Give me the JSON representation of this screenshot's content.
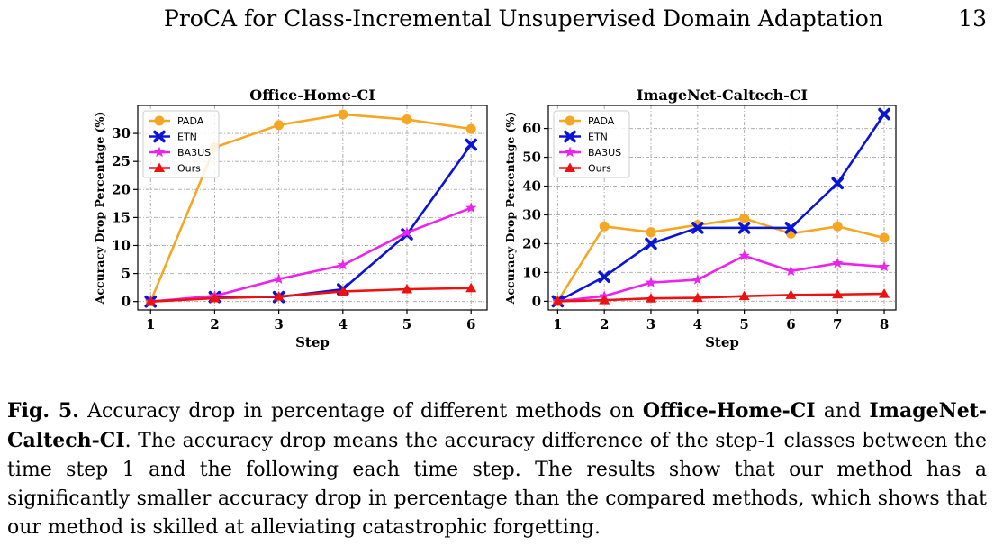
{
  "header": {
    "title": "ProCA for Class-Incremental Unsupervised Domain Adaptation",
    "page_number": "13"
  },
  "caption": {
    "label": "Fig. 5.",
    "t1": " Accuracy drop in percentage of different methods on ",
    "b1": "Office-Home-CI",
    "t2": " and ",
    "b2": "ImageNet-Caltech-CI",
    "t3": ". The accuracy drop means the accuracy difference of the step-1 classes between the time step 1 and the following each time step. The results show that our method has a significantly smaller accuracy drop in percentage than the compared methods, which shows that our method is skilled at alleviating catastrophic forgetting."
  },
  "colors": {
    "PADA": "#f5a623",
    "ETN": "#0a14d6",
    "BA3US": "#ee22ee",
    "Ours": "#ee1111"
  },
  "chart_data": [
    {
      "type": "line",
      "title": "Office-Home-CI",
      "xlabel": "Step",
      "ylabel": "Accuracy Drop Percentage (%)",
      "x": [
        1,
        2,
        3,
        4,
        5,
        6
      ],
      "xlim": [
        0.8,
        6.25
      ],
      "ylim": [
        -1.5,
        35
      ],
      "yticks": [
        0,
        5,
        10,
        15,
        20,
        25,
        30
      ],
      "grid": true,
      "legend": "top-left",
      "series": [
        {
          "name": "PADA",
          "marker": "circle",
          "values": [
            0,
            27.5,
            31.5,
            33.4,
            32.5,
            30.8
          ]
        },
        {
          "name": "ETN",
          "marker": "x",
          "values": [
            0,
            0.8,
            0.8,
            2.2,
            12,
            28
          ]
        },
        {
          "name": "BA3US",
          "marker": "star",
          "values": [
            0,
            1,
            4,
            6.5,
            12.3,
            16.7
          ]
        },
        {
          "name": "Ours",
          "marker": "triangle",
          "values": [
            0,
            0.6,
            0.9,
            1.8,
            2.2,
            2.4
          ]
        }
      ]
    },
    {
      "type": "line",
      "title": "ImageNet-Caltech-CI",
      "xlabel": "Step",
      "ylabel": "Accuracy Drop Percentage (%)",
      "x": [
        1,
        2,
        3,
        4,
        5,
        6,
        7,
        8
      ],
      "xlim": [
        0.8,
        8.25
      ],
      "ylim": [
        -3,
        68
      ],
      "yticks": [
        0,
        10,
        20,
        30,
        40,
        50,
        60
      ],
      "grid": true,
      "legend": "top-left",
      "series": [
        {
          "name": "PADA",
          "marker": "circle",
          "values": [
            0,
            26,
            24,
            26.5,
            28.8,
            23.5,
            26,
            22
          ]
        },
        {
          "name": "ETN",
          "marker": "x",
          "values": [
            0,
            8.5,
            20,
            25.5,
            25.5,
            25.5,
            41,
            65
          ]
        },
        {
          "name": "BA3US",
          "marker": "star",
          "values": [
            0,
            1.8,
            6.5,
            7.5,
            15.8,
            10.5,
            13.2,
            12
          ]
        },
        {
          "name": "Ours",
          "marker": "triangle",
          "values": [
            0,
            0.4,
            1,
            1.2,
            1.8,
            2.2,
            2.4,
            2.6
          ]
        }
      ]
    }
  ]
}
